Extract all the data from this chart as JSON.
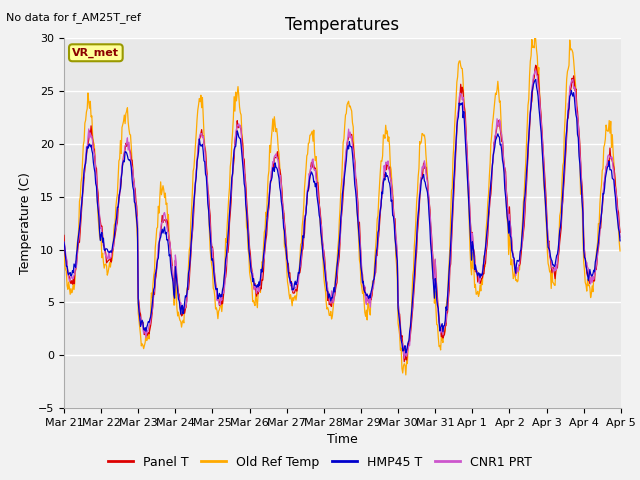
{
  "title": "Temperatures",
  "ylabel": "Temperature (C)",
  "xlabel": "Time",
  "ylim": [
    -5,
    30
  ],
  "yticks": [
    -5,
    0,
    5,
    10,
    15,
    20,
    25,
    30
  ],
  "xtick_labels": [
    "Mar 21",
    "Mar 22",
    "Mar 23",
    "Mar 24",
    "Mar 25",
    "Mar 26",
    "Mar 27",
    "Mar 28",
    "Mar 29",
    "Mar 30",
    "Mar 31",
    "Apr 1",
    "Apr 2",
    "Apr 3",
    "Apr 4",
    "Apr 5"
  ],
  "colors": {
    "panel_t": "#dd0000",
    "old_ref": "#ffaa00",
    "hmp45": "#0000cc",
    "cnr1": "#cc55cc"
  },
  "legend_labels": [
    "Panel T",
    "Old Ref Temp",
    "HMP45 T",
    "CNR1 PRT"
  ],
  "no_data_text": "No data for f_AM25T_ref",
  "vr_met_label": "VR_met",
  "bg_color": "#e8e8e8",
  "fig_bg_color": "#f2f2f2",
  "grid_color": "#ffffff",
  "title_fontsize": 12,
  "axis_fontsize": 9,
  "tick_fontsize": 8,
  "legend_fontsize": 9
}
